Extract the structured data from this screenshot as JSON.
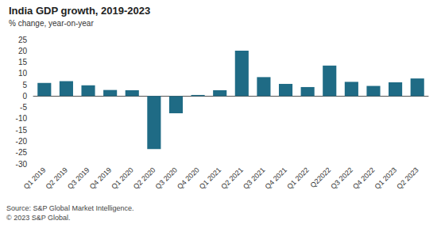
{
  "chart_data": {
    "type": "bar",
    "title": "India GDP growth, 2019-2023",
    "subtitle": "% change, year-on-year",
    "categories": [
      "Q1 2019",
      "Q2 2019",
      "Q3 2019",
      "Q4 2019",
      "Q1 2020",
      "Q2 2020",
      "Q3 2020",
      "Q4 2020",
      "Q1 2021",
      "Q2 2021",
      "Q3 2021",
      "Q4 2021",
      "Q1 2022",
      "Q22022",
      "Q3 2022",
      "Q4 2022",
      "Q1 2023",
      "Q2 2023"
    ],
    "values": [
      5.8,
      6.6,
      4.8,
      2.7,
      2.6,
      -23.4,
      -7.6,
      0.5,
      2.6,
      20.1,
      8.4,
      5.4,
      4.0,
      13.5,
      6.3,
      4.5,
      6.1,
      7.8
    ],
    "color": "#1f6b85",
    "ylim": [
      -30,
      25
    ],
    "yticks": [
      -30,
      -25,
      -20,
      -15,
      -10,
      -5,
      0,
      5,
      10,
      15,
      20,
      25
    ],
    "grid": false,
    "footnotes": [
      "Source: S&P Global Market Intelligence.",
      "© 2023 S&P Global."
    ]
  }
}
